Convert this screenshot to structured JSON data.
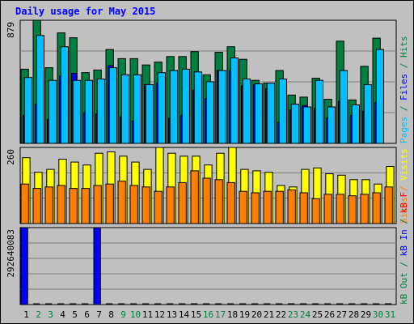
{
  "chart_data": {
    "type": "bar",
    "title": "Daily usage for May 2015",
    "categories": [
      "1",
      "2",
      "3",
      "4",
      "5",
      "6",
      "7",
      "8",
      "9",
      "10",
      "11",
      "12",
      "13",
      "14",
      "15",
      "16",
      "17",
      "18",
      "19",
      "20",
      "21",
      "22",
      "23",
      "24",
      "25",
      "26",
      "27",
      "28",
      "29",
      "30",
      "31"
    ],
    "weekend_days": [
      "2",
      "3",
      "9",
      "10",
      "16",
      "17",
      "23",
      "24",
      "30",
      "31"
    ],
    "panels": [
      {
        "id": "hits-files-pages",
        "ymax_label": "879",
        "ylim": [
          0,
          879
        ],
        "right_labels": [
          {
            "text": "Hits",
            "color": "#008040"
          },
          {
            "text": " / ",
            "color": "#008040"
          },
          {
            "text": "Files",
            "color": "#0000ff"
          },
          {
            "text": " / ",
            "color": "#008040"
          },
          {
            "text": "Pages",
            "color": "#00c0ff"
          }
        ],
        "series": [
          {
            "name": "Hits",
            "color": "#008040",
            "values": [
              530,
              879,
              540,
              789,
              754,
              505,
              524,
              670,
              605,
              605,
              560,
              580,
              620,
              620,
              655,
              490,
              650,
              690,
              600,
              450,
              430,
              520,
              345,
              330,
              465,
              315,
              730,
              310,
              550,
              751,
              0
            ]
          },
          {
            "name": "Files",
            "color": "#0000ff",
            "values": [
              200,
              280,
              170,
              480,
              500,
              220,
              210,
              555,
              190,
              160,
              420,
              430,
              180,
              200,
              380,
              320,
              520,
              520,
              410,
              420,
              390,
              150,
              240,
              270,
              250,
              180,
              300,
              200,
              230,
              290,
              0
            ]
          },
          {
            "name": "Pages",
            "color": "#00c0ff",
            "values": [
              470,
              770,
              450,
              690,
              450,
              450,
              460,
              540,
              490,
              490,
              420,
              505,
              520,
              530,
              510,
              440,
              520,
              610,
              460,
              425,
              430,
              460,
              280,
              260,
              450,
              260,
              520,
              275,
              420,
              670,
              0
            ]
          }
        ]
      },
      {
        "id": "sites-visits",
        "ymax_label": "260",
        "ylim": [
          0,
          260
        ],
        "right_labels": [
          {
            "text": "Visits",
            "color": "#ffff00"
          },
          {
            "text": " / ",
            "color": "#ff8000"
          },
          {
            "text": "Sites",
            "color": "#ff8000"
          }
        ],
        "series": [
          {
            "name": "Visits",
            "color": "#ffff00",
            "values": [
              225,
              175,
              185,
              220,
              210,
              200,
              240,
              245,
              230,
              210,
              185,
              260,
              240,
              230,
              230,
              200,
              240,
              260,
              185,
              180,
              175,
              130,
              125,
              185,
              190,
              170,
              165,
              150,
              150,
              135,
              195
            ]
          },
          {
            "name": "Sites",
            "color": "#ff8000",
            "values": [
              135,
              120,
              125,
              130,
              120,
              120,
              130,
              135,
              145,
              130,
              125,
              110,
              125,
              140,
              180,
              155,
              150,
              140,
              110,
              105,
              110,
              110,
              115,
              105,
              85,
              100,
              100,
              95,
              100,
              105,
              125
            ]
          }
        ]
      },
      {
        "id": "kbytes",
        "ymax_label": "292640083",
        "ylim": [
          0,
          292640083
        ],
        "right_labels": [
          {
            "text": "kB F",
            "color": "#ff0000"
          },
          {
            "text": " / ",
            "color": "#008040"
          },
          {
            "text": "kB In",
            "color": "#0000ff"
          },
          {
            "text": " / ",
            "color": "#008040"
          },
          {
            "text": "kB Out",
            "color": "#008040"
          }
        ],
        "series": [
          {
            "name": "kB In",
            "color": "#0000ff",
            "values": [
              292640083,
              0,
              0,
              0,
              0,
              0,
              292640083,
              0,
              0,
              0,
              0,
              0,
              0,
              0,
              0,
              0,
              0,
              0,
              0,
              0,
              0,
              0,
              0,
              0,
              0,
              0,
              0,
              0,
              0,
              0,
              0
            ]
          }
        ]
      }
    ],
    "colors": {
      "background": "#c0c0c0",
      "title": "#0000ff",
      "grid": "#808080",
      "weekday_label": "#000000",
      "weekend_label": "#008040"
    },
    "grid": true
  }
}
